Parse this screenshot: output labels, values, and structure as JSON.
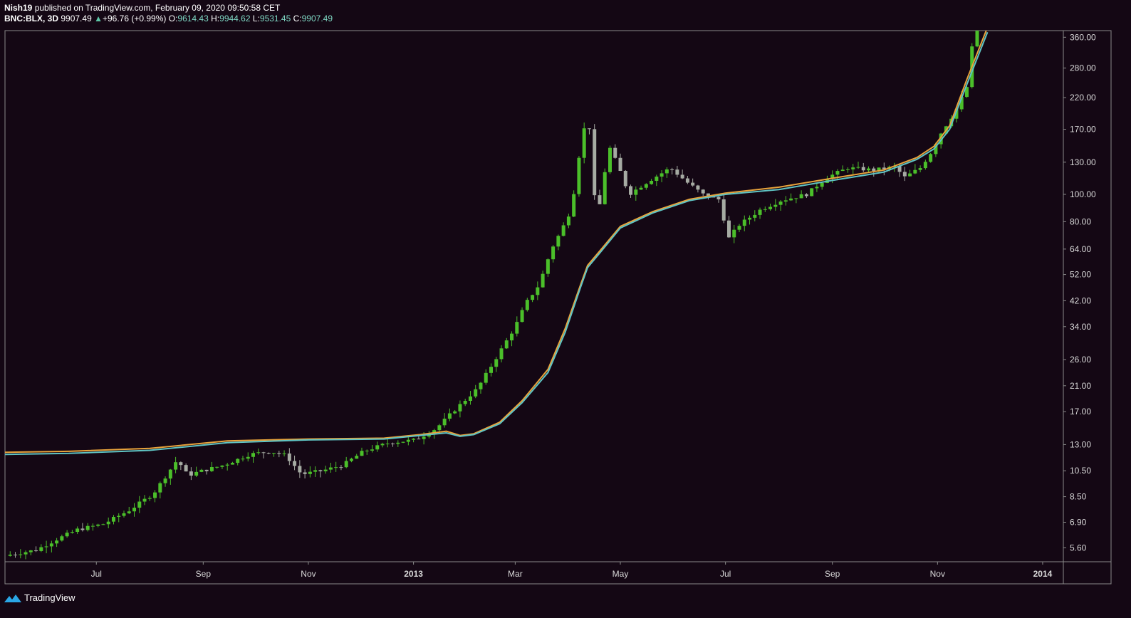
{
  "header": {
    "publisher": "Nish19",
    "published_text": "published on TradingView.com, February 09, 2020 09:50:58 CET",
    "symbol": "BNC:BLX, 3D",
    "last": "9907.49",
    "change_arrow": "▲",
    "change": "+96.76 (+0.99%)",
    "o_label": "O:",
    "o_value": "9614.43",
    "h_label": "H:",
    "h_value": "9944.62",
    "l_label": "L:",
    "l_value": "9531.45",
    "c_label": "C:",
    "c_value": "9907.49"
  },
  "footer": {
    "brand": "TradingView",
    "logo_icon": "tradingview-logo-icon"
  },
  "colors": {
    "background": "#140714",
    "up_candle": "#4bbf2a",
    "down_candle": "#a6aba3",
    "ma_orange": "#e8a33c",
    "ma_teal": "#5fc4c4",
    "axis_text": "#d9d9d9",
    "frame": "#8a8a8a"
  },
  "chart_data": {
    "type": "candlestick",
    "scale": "log",
    "ylim": [
      5.0,
      380
    ],
    "y_ticks": [
      5.6,
      6.9,
      8.5,
      10.5,
      13.0,
      17.0,
      21.0,
      26.0,
      34.0,
      42.0,
      52.0,
      64.0,
      80.0,
      100.0,
      130.0,
      170.0,
      220.0,
      280.0,
      360.0
    ],
    "y_tick_labels": [
      "5.60",
      "6.90",
      "8.50",
      "10.50",
      "13.00",
      "17.00",
      "21.00",
      "26.00",
      "34.00",
      "42.00",
      "52.00",
      "64.00",
      "80.00",
      "100.00",
      "130.00",
      "170.00",
      "220.00",
      "280.00",
      "360.00"
    ],
    "x_ticks": [
      {
        "label": "Jul",
        "date": "2012-07-01"
      },
      {
        "label": "Sep",
        "date": "2012-09-01"
      },
      {
        "label": "Nov",
        "date": "2012-11-01"
      },
      {
        "label": "2013",
        "date": "2013-01-01",
        "bold": true
      },
      {
        "label": "Mar",
        "date": "2013-03-01"
      },
      {
        "label": "May",
        "date": "2013-05-01"
      },
      {
        "label": "Jul",
        "date": "2013-07-01"
      },
      {
        "label": "Sep",
        "date": "2013-09-01"
      },
      {
        "label": "Nov",
        "date": "2013-11-01"
      },
      {
        "label": "2014",
        "date": "2014-01-01",
        "bold": true
      }
    ],
    "xlim": [
      "2012-05-09",
      "2014-01-13"
    ],
    "close_path": [
      [
        "2012-05-12",
        5.3
      ],
      [
        "2012-05-27",
        5.5
      ],
      [
        "2012-06-08",
        6.0
      ],
      [
        "2012-06-20",
        6.5
      ],
      [
        "2012-07-05",
        6.8
      ],
      [
        "2012-07-20",
        7.6
      ],
      [
        "2012-08-03",
        8.7
      ],
      [
        "2012-08-17",
        11.5
      ],
      [
        "2012-08-23",
        10.1
      ],
      [
        "2012-08-29",
        10.4
      ],
      [
        "2012-09-13",
        11.0
      ],
      [
        "2012-09-28",
        12.0
      ],
      [
        "2012-10-10",
        12.3
      ],
      [
        "2012-10-19",
        11.9
      ],
      [
        "2012-10-28",
        10.2
      ],
      [
        "2012-11-09",
        10.5
      ],
      [
        "2012-11-21",
        11.0
      ],
      [
        "2012-12-03",
        12.3
      ],
      [
        "2012-12-18",
        13.2
      ],
      [
        "2013-01-02",
        13.5
      ],
      [
        "2013-01-14",
        14.8
      ],
      [
        "2013-01-26",
        17.5
      ],
      [
        "2013-02-07",
        20.5
      ],
      [
        "2013-02-19",
        27.0
      ],
      [
        "2013-03-01",
        34.0
      ],
      [
        "2013-03-07",
        41.0
      ],
      [
        "2013-03-15",
        48.0
      ],
      [
        "2013-03-22",
        64.0
      ],
      [
        "2013-03-28",
        75.0
      ],
      [
        "2013-04-03",
        90.0
      ],
      [
        "2013-04-06",
        130.0
      ],
      [
        "2013-04-09",
        150.0
      ],
      [
        "2013-04-12",
        220.0
      ],
      [
        "2013-04-15",
        105.0
      ],
      [
        "2013-04-18",
        85.0
      ],
      [
        "2013-04-21",
        108.0
      ],
      [
        "2013-04-24",
        150.0
      ],
      [
        "2013-04-30",
        125.0
      ],
      [
        "2013-05-06",
        100.0
      ],
      [
        "2013-05-18",
        112.0
      ],
      [
        "2013-05-30",
        124.0
      ],
      [
        "2013-06-09",
        110.0
      ],
      [
        "2013-06-18",
        100.0
      ],
      [
        "2013-06-27",
        96.0
      ],
      [
        "2013-07-03",
        70.0
      ],
      [
        "2013-07-09",
        78.0
      ],
      [
        "2013-07-21",
        88.0
      ],
      [
        "2013-08-02",
        95.0
      ],
      [
        "2013-08-17",
        100.0
      ],
      [
        "2013-08-29",
        115.0
      ],
      [
        "2013-09-10",
        124.0
      ],
      [
        "2013-09-25",
        122.0
      ],
      [
        "2013-10-07",
        125.0
      ],
      [
        "2013-10-13",
        115.0
      ],
      [
        "2013-10-22",
        124.0
      ],
      [
        "2013-10-28",
        140.0
      ],
      [
        "2013-11-03",
        165.0
      ],
      [
        "2013-11-12",
        200.0
      ],
      [
        "2013-11-18",
        240.0
      ],
      [
        "2013-11-21",
        330.0
      ],
      [
        "2013-11-24",
        380.0
      ]
    ],
    "series": [
      {
        "type": "line",
        "points": [
          [
            "2012-05-09",
            12.2
          ],
          [
            "2012-06-15",
            12.3
          ],
          [
            "2012-08-01",
            12.6
          ],
          [
            "2012-09-15",
            13.4
          ],
          [
            "2012-11-01",
            13.6
          ],
          [
            "2012-12-15",
            13.7
          ],
          [
            "2013-01-05",
            14.1
          ],
          [
            "2013-01-20",
            14.5
          ],
          [
            "2013-01-28",
            14.0
          ],
          [
            "2013-02-05",
            14.2
          ],
          [
            "2013-02-20",
            15.6
          ],
          [
            "2013-03-05",
            18.6
          ],
          [
            "2013-03-20",
            24.0
          ],
          [
            "2013-03-30",
            33.5
          ],
          [
            "2013-04-08",
            48.0
          ],
          [
            "2013-04-12",
            56.0
          ],
          [
            "2013-04-20",
            64.0
          ],
          [
            "2013-05-01",
            77.0
          ],
          [
            "2013-05-20",
            87.0
          ],
          [
            "2013-06-10",
            96.0
          ],
          [
            "2013-07-01",
            101.0
          ],
          [
            "2013-08-01",
            106.0
          ],
          [
            "2013-09-01",
            114.0
          ],
          [
            "2013-10-01",
            122.0
          ],
          [
            "2013-10-20",
            135.0
          ],
          [
            "2013-10-30",
            148.0
          ],
          [
            "2013-11-08",
            175.0
          ],
          [
            "2013-11-18",
            255.0
          ],
          [
            "2013-11-30",
            390.0
          ]
        ]
      },
      {
        "type": "line",
        "points": [
          [
            "2012-05-09",
            12.0
          ],
          [
            "2012-06-15",
            12.1
          ],
          [
            "2012-08-01",
            12.4
          ],
          [
            "2012-09-15",
            13.2
          ],
          [
            "2012-11-01",
            13.5
          ],
          [
            "2012-12-15",
            13.6
          ],
          [
            "2013-01-05",
            14.0
          ],
          [
            "2013-01-20",
            14.3
          ],
          [
            "2013-01-28",
            13.9
          ],
          [
            "2013-02-05",
            14.1
          ],
          [
            "2013-02-20",
            15.4
          ],
          [
            "2013-03-05",
            18.3
          ],
          [
            "2013-03-20",
            23.4
          ],
          [
            "2013-03-30",
            32.5
          ],
          [
            "2013-04-08",
            47.0
          ],
          [
            "2013-04-12",
            55.0
          ],
          [
            "2013-04-20",
            63.0
          ],
          [
            "2013-05-01",
            76.0
          ],
          [
            "2013-05-20",
            86.0
          ],
          [
            "2013-06-10",
            95.0
          ],
          [
            "2013-07-01",
            100.0
          ],
          [
            "2013-08-01",
            104.0
          ],
          [
            "2013-09-01",
            112.0
          ],
          [
            "2013-10-01",
            120.0
          ],
          [
            "2013-10-20",
            133.0
          ],
          [
            "2013-10-30",
            145.0
          ],
          [
            "2013-11-08",
            170.0
          ],
          [
            "2013-11-18",
            245.0
          ],
          [
            "2013-11-30",
            375.0
          ]
        ]
      }
    ]
  }
}
